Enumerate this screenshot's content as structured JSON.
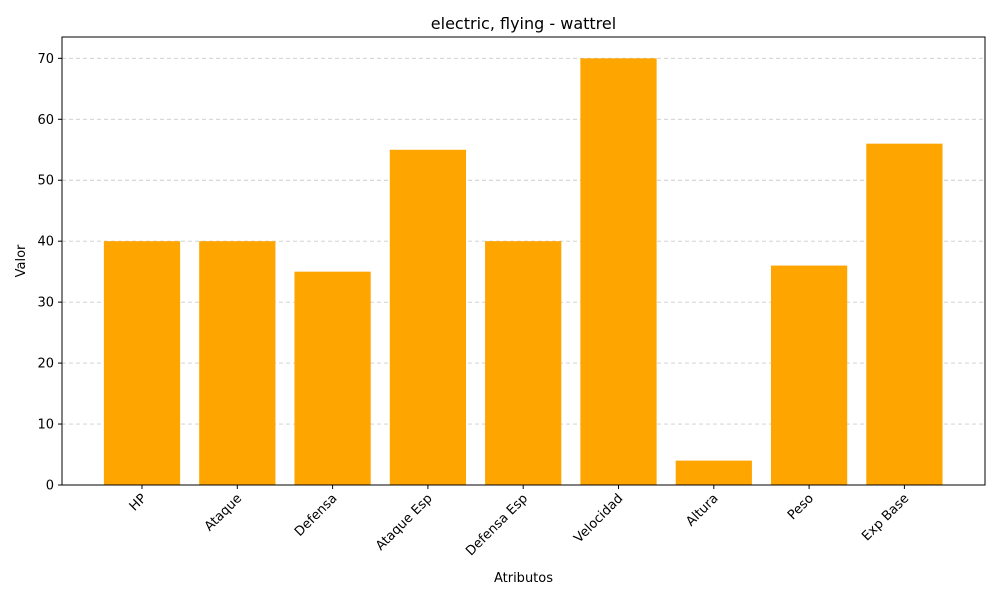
{
  "chart_data": {
    "type": "bar",
    "title": "electric, flying - wattrel",
    "xlabel": "Atributos",
    "ylabel": "Valor",
    "categories": [
      "HP",
      "Ataque",
      "Defensa",
      "Ataque Esp",
      "Defensa Esp",
      "Velocidad",
      "Altura",
      "Peso",
      "Exp Base"
    ],
    "values": [
      40,
      40,
      35,
      55,
      40,
      70,
      4,
      36,
      56
    ],
    "ylim": [
      0,
      73.5
    ],
    "yticks": [
      0,
      10,
      20,
      30,
      40,
      50,
      60,
      70
    ],
    "bar_color": "#FFA500",
    "grid": "y-dashed",
    "x_tick_rotation": -45
  }
}
